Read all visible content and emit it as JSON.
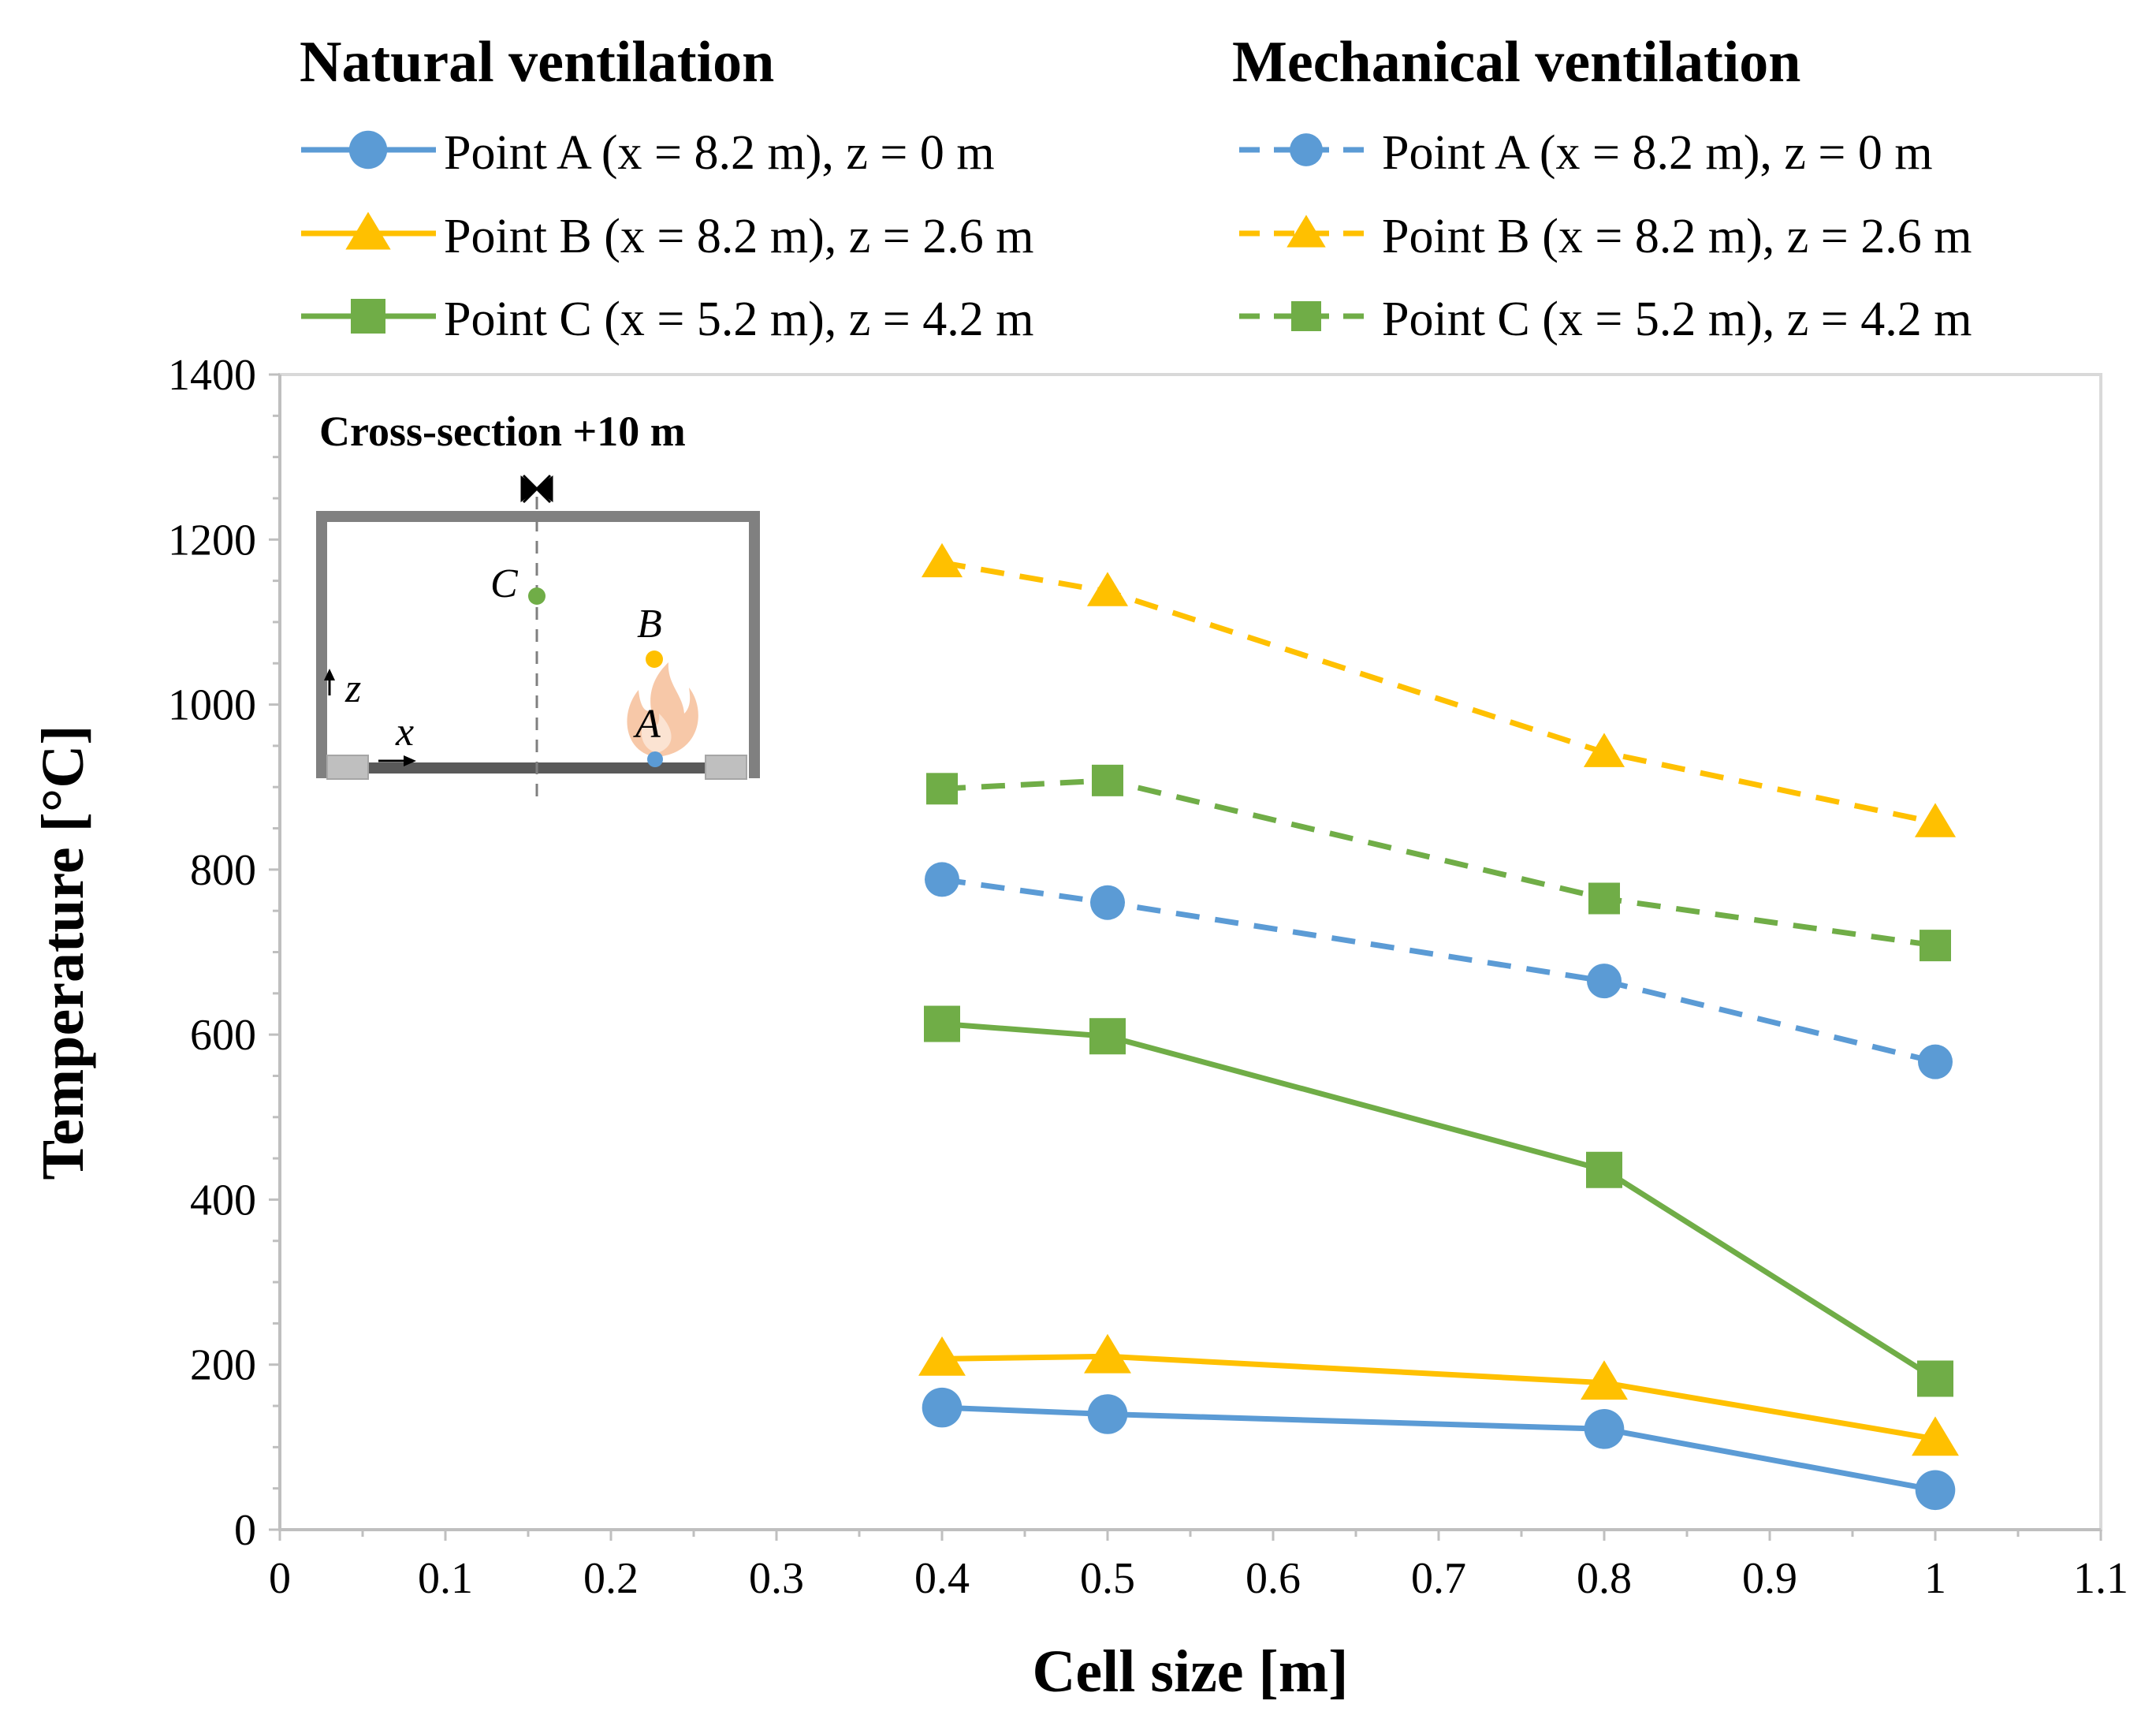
{
  "colors": {
    "point_a": "#5B9BD5",
    "point_b": "#FFC000",
    "point_c": "#70AD47",
    "axis": "#D9D9D9",
    "text": "#000000",
    "inset_wall": "#808080"
  },
  "legend": {
    "natural_title": "Natural ventilation",
    "mechanical_title": "Mechanical ventilation",
    "natural_items": [
      "Point A (x = 8.2 m), z = 0 m",
      "Point B (x = 8.2 m), z = 2.6 m",
      "Point C (x = 5.2 m), z = 4.2 m"
    ],
    "mechanical_items": [
      "Point A (x = 8.2 m), z = 0 m",
      "Point B (x = 8.2 m), z = 2.6 m",
      "Point C (x = 5.2 m), z = 4.2 m"
    ]
  },
  "inset": {
    "title": "Cross-section +10 m",
    "label_a": "A",
    "label_b": "B",
    "label_c": "C",
    "label_x": "x",
    "label_z": "z"
  },
  "chart_data": {
    "type": "line",
    "xlabel": "Cell size [m]",
    "ylabel": "Temperature [°C]",
    "xlim": [
      0,
      1.1
    ],
    "ylim": [
      0,
      1400
    ],
    "xticks": [
      0,
      0.1,
      0.2,
      0.3,
      0.4,
      0.5,
      0.6,
      0.7,
      0.8,
      0.9,
      1,
      1.1
    ],
    "xtick_labels": [
      "0",
      "0.1",
      "0.2",
      "0.3",
      "0.4",
      "0.5",
      "0.6",
      "0.7",
      "0.8",
      "0.9",
      "1",
      "1.1"
    ],
    "yticks": [
      0,
      200,
      400,
      600,
      800,
      1000,
      1200,
      1400
    ],
    "ytick_labels": [
      "0",
      "200",
      "400",
      "600",
      "800",
      "1000",
      "1200",
      "1400"
    ],
    "grid": false,
    "legend_position": "top",
    "x": [
      0.4,
      0.5,
      0.8,
      1.0
    ],
    "series": [
      {
        "name": "Natural ventilation - Point A (x = 8.2 m), z = 0 m",
        "point": "A",
        "dashed": false,
        "marker": "circle",
        "values": [
          148,
          140,
          122,
          48
        ]
      },
      {
        "name": "Natural ventilation - Point B (x = 8.2 m), z = 2.6 m",
        "point": "B",
        "dashed": false,
        "marker": "triangle",
        "values": [
          207,
          210,
          178,
          110
        ]
      },
      {
        "name": "Natural ventilation - Point C (x = 5.2 m), z = 4.2 m",
        "point": "C",
        "dashed": false,
        "marker": "square",
        "values": [
          613,
          598,
          436,
          183
        ]
      },
      {
        "name": "Mechanical ventilation - Point A (x = 8.2 m), z = 0 m",
        "point": "A",
        "dashed": true,
        "marker": "circle",
        "values": [
          788,
          760,
          665,
          567
        ]
      },
      {
        "name": "Mechanical ventilation - Point B (x = 8.2 m), z = 2.6 m",
        "point": "B",
        "dashed": true,
        "marker": "triangle",
        "values": [
          1172,
          1137,
          942,
          857
        ]
      },
      {
        "name": "Mechanical ventilation - Point C (x = 5.2 m), z = 4.2 m",
        "point": "C",
        "dashed": true,
        "marker": "square",
        "values": [
          898,
          908,
          765,
          708
        ]
      }
    ]
  }
}
